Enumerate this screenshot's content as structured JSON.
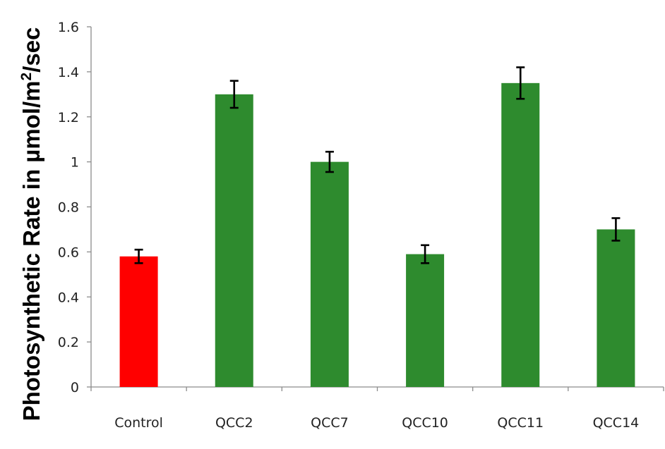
{
  "chart_data": {
    "type": "bar",
    "categories": [
      "Control",
      "QCC2",
      "QCC7",
      "QCC10",
      "QCC11",
      "QCC14"
    ],
    "values": [
      0.58,
      1.3,
      1.0,
      0.59,
      1.35,
      0.7
    ],
    "errors": [
      0.03,
      0.06,
      0.045,
      0.04,
      0.07,
      0.05
    ],
    "colors": [
      "#ff0000",
      "#2e8b2e",
      "#2e8b2e",
      "#2e8b2e",
      "#2e8b2e",
      "#2e8b2e"
    ],
    "yticks": [
      "0",
      "0.2",
      "0.4",
      "0.6",
      "0.8",
      "1",
      "1.2",
      "1.4",
      "1.6"
    ],
    "ylim": [
      0,
      1.6
    ],
    "ylabel_main": "Photosynthetic Rate in µmol/m",
    "ylabel_sup": "2",
    "ylabel_tail": "/sec",
    "grid": false
  }
}
